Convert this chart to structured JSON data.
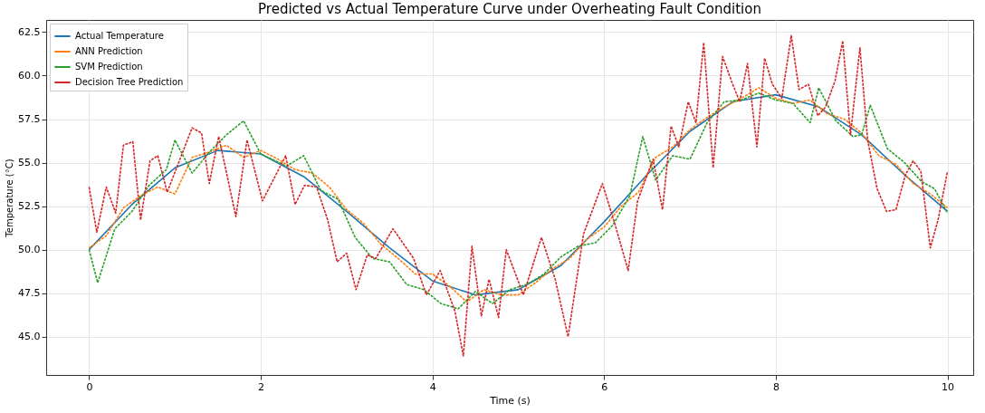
{
  "chart_data": {
    "type": "line",
    "title": "Predicted vs Actual Temperature Curve under Overheating Fault Condition",
    "xlabel": "Time (s)",
    "ylabel": "Temperature (°C)",
    "xlim": [
      -0.5,
      10.3
    ],
    "ylim": [
      42.8,
      63.2
    ],
    "xticks": [
      0,
      2,
      4,
      6,
      8,
      10
    ],
    "yticks": [
      {
        "value": 45,
        "label": "45.0"
      },
      {
        "value": 47.5,
        "label": "47.5"
      },
      {
        "value": 50,
        "label": "50.0"
      },
      {
        "value": 52.5,
        "label": "52.5"
      },
      {
        "value": 55,
        "label": "55.0"
      },
      {
        "value": 57.5,
        "label": "57.5"
      },
      {
        "value": 60,
        "label": "60.0"
      },
      {
        "value": 62.5,
        "label": "62.5"
      }
    ],
    "grid": true,
    "legend": "top left",
    "series": [
      {
        "name": "Actual Temperature",
        "color": "#1f77b4",
        "line_style": "solid",
        "x": [
          0,
          0.5,
          1,
          1.5,
          2,
          2.5,
          3,
          3.5,
          4,
          4.5,
          5,
          5.5,
          6,
          6.5,
          7,
          7.5,
          8,
          8.5,
          9,
          9.5,
          10
        ],
        "values": [
          50.0,
          52.6,
          54.7,
          55.7,
          55.5,
          54.2,
          52.2,
          50.1,
          48.2,
          47.4,
          47.7,
          49.1,
          51.6,
          54.3,
          56.8,
          58.5,
          58.9,
          58.2,
          56.6,
          54.3,
          52.2
        ]
      },
      {
        "name": "ANN Prediction",
        "color": "#ff7f0e",
        "line_style": "dashed",
        "x": [
          0,
          0.2,
          0.4,
          0.6,
          0.8,
          1.0,
          1.2,
          1.4,
          1.6,
          1.8,
          2.0,
          2.2,
          2.4,
          2.6,
          2.8,
          3.0,
          3.2,
          3.4,
          3.6,
          3.8,
          4.0,
          4.2,
          4.4,
          4.6,
          4.8,
          5.0,
          5.2,
          5.4,
          5.6,
          5.8,
          6.0,
          6.2,
          6.4,
          6.6,
          6.8,
          7.0,
          7.2,
          7.4,
          7.6,
          7.8,
          8.0,
          8.2,
          8.4,
          8.6,
          8.8,
          9.0,
          9.2,
          9.4,
          9.6,
          9.8,
          10
        ],
        "values": [
          50.1,
          50.8,
          52.4,
          53.1,
          53.6,
          53.2,
          55.3,
          55.6,
          56.0,
          55.3,
          55.7,
          55.2,
          54.6,
          54.4,
          53.6,
          52.3,
          51.5,
          50.3,
          49.5,
          48.6,
          48.6,
          47.9,
          47.0,
          47.7,
          47.4,
          47.4,
          48.1,
          48.9,
          49.5,
          50.6,
          51.3,
          52.5,
          53.3,
          55.3,
          55.9,
          56.9,
          57.6,
          58.2,
          58.7,
          59.3,
          58.7,
          58.4,
          58.6,
          57.8,
          57.5,
          56.7,
          55.4,
          54.9,
          53.8,
          53.2,
          52.4
        ]
      },
      {
        "name": "SVM Prediction",
        "color": "#2ca02c",
        "line_style": "dashed",
        "x": [
          0,
          0.1,
          0.3,
          0.5,
          0.7,
          0.9,
          1.0,
          1.2,
          1.4,
          1.6,
          1.8,
          2.0,
          2.3,
          2.5,
          2.7,
          2.9,
          3.1,
          3.3,
          3.5,
          3.7,
          3.9,
          4.1,
          4.3,
          4.5,
          4.7,
          4.9,
          5.1,
          5.3,
          5.5,
          5.7,
          5.9,
          6.1,
          6.3,
          6.45,
          6.6,
          6.8,
          7.0,
          7.2,
          7.4,
          7.6,
          7.8,
          8.0,
          8.2,
          8.4,
          8.5,
          8.7,
          8.9,
          9.0,
          9.1,
          9.3,
          9.5,
          9.7,
          9.85,
          10
        ],
        "values": [
          50.0,
          48.1,
          51.2,
          52.2,
          53.7,
          54.6,
          56.3,
          54.4,
          55.6,
          56.6,
          57.4,
          55.5,
          54.8,
          55.4,
          53.4,
          52.9,
          50.7,
          49.5,
          49.3,
          48.0,
          47.7,
          46.9,
          46.6,
          47.6,
          46.9,
          47.7,
          48.0,
          48.6,
          49.6,
          50.2,
          50.4,
          51.4,
          53.1,
          56.5,
          54.0,
          55.4,
          55.2,
          57.3,
          58.5,
          58.6,
          59.0,
          58.6,
          58.4,
          57.3,
          59.3,
          57.4,
          56.5,
          56.6,
          58.3,
          55.8,
          55.0,
          53.9,
          53.5,
          52.1
        ]
      },
      {
        "name": "Decision Tree Prediction",
        "color": "#d62728",
        "line_style": "dashed",
        "x": [
          0,
          0.09,
          0.2,
          0.31,
          0.4,
          0.51,
          0.6,
          0.71,
          0.8,
          0.91,
          1.2,
          1.31,
          1.4,
          1.51,
          1.71,
          1.84,
          2.02,
          2.29,
          2.4,
          2.51,
          2.65,
          2.78,
          2.89,
          3.0,
          3.11,
          3.24,
          3.34,
          3.54,
          3.78,
          3.93,
          4.09,
          4.26,
          4.36,
          4.46,
          4.57,
          4.66,
          4.77,
          4.86,
          5.06,
          5.27,
          5.43,
          5.58,
          5.76,
          5.98,
          6.13,
          6.28,
          6.39,
          6.57,
          6.68,
          6.78,
          6.87,
          6.98,
          7.07,
          7.16,
          7.27,
          7.38,
          7.49,
          7.58,
          7.67,
          7.78,
          7.87,
          7.96,
          8.07,
          8.18,
          8.27,
          8.38,
          8.49,
          8.58,
          8.69,
          8.78,
          8.87,
          8.98,
          9.07,
          9.18,
          9.29,
          9.4,
          9.51,
          9.6,
          9.69,
          9.8,
          9.89,
          10.0
        ],
        "values": [
          53.6,
          51.0,
          53.6,
          52.1,
          56.0,
          56.2,
          51.7,
          55.1,
          55.4,
          53.3,
          57.0,
          56.7,
          53.8,
          56.5,
          51.9,
          56.3,
          52.8,
          55.4,
          52.6,
          53.7,
          53.6,
          51.7,
          49.3,
          49.8,
          47.7,
          49.7,
          49.5,
          51.2,
          49.5,
          47.4,
          48.8,
          46.5,
          43.9,
          50.2,
          46.2,
          48.3,
          46.1,
          50.0,
          47.4,
          50.7,
          48.3,
          45.0,
          50.9,
          53.8,
          51.4,
          48.8,
          52.8,
          55.2,
          52.3,
          57.1,
          55.9,
          58.5,
          57.3,
          61.9,
          54.7,
          61.1,
          59.6,
          58.5,
          60.7,
          55.9,
          61.0,
          59.5,
          58.7,
          62.3,
          59.2,
          59.5,
          57.7,
          58.2,
          59.7,
          62.0,
          56.6,
          61.6,
          56.3,
          53.5,
          52.2,
          52.3,
          54.3,
          55.1,
          54.5,
          50.1,
          51.7,
          54.5
        ]
      }
    ]
  }
}
